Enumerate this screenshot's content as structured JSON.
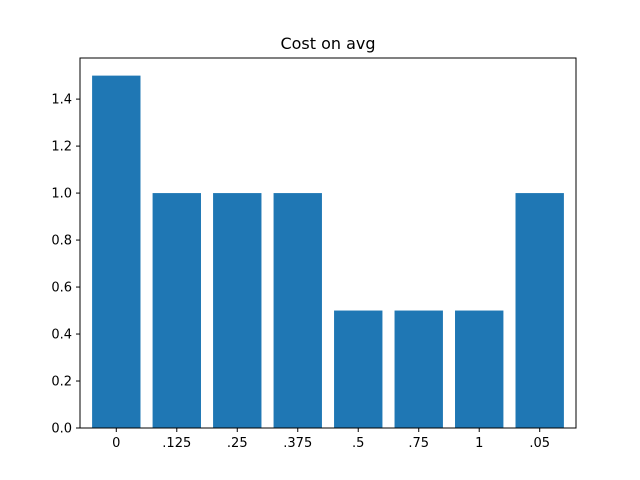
{
  "chart_data": {
    "type": "bar",
    "title": "Cost on avg",
    "xlabel": "",
    "ylabel": "",
    "categories": [
      "0",
      ".125",
      ".25",
      ".375",
      ".5",
      ".75",
      "1",
      ".05"
    ],
    "values": [
      1.5,
      1.0,
      1.0,
      1.0,
      0.5,
      0.5,
      0.5,
      1.0
    ],
    "ylim": [
      0,
      1.575
    ],
    "yticks": [
      0.0,
      0.2,
      0.4,
      0.6,
      0.8,
      1.0,
      1.2,
      1.4
    ],
    "ytick_labels": [
      "0.0",
      "0.2",
      "0.4",
      "0.6",
      "0.8",
      "1.0",
      "1.2",
      "1.4"
    ],
    "bar_color": "#1f77b4",
    "grid": false,
    "legend": "none"
  }
}
